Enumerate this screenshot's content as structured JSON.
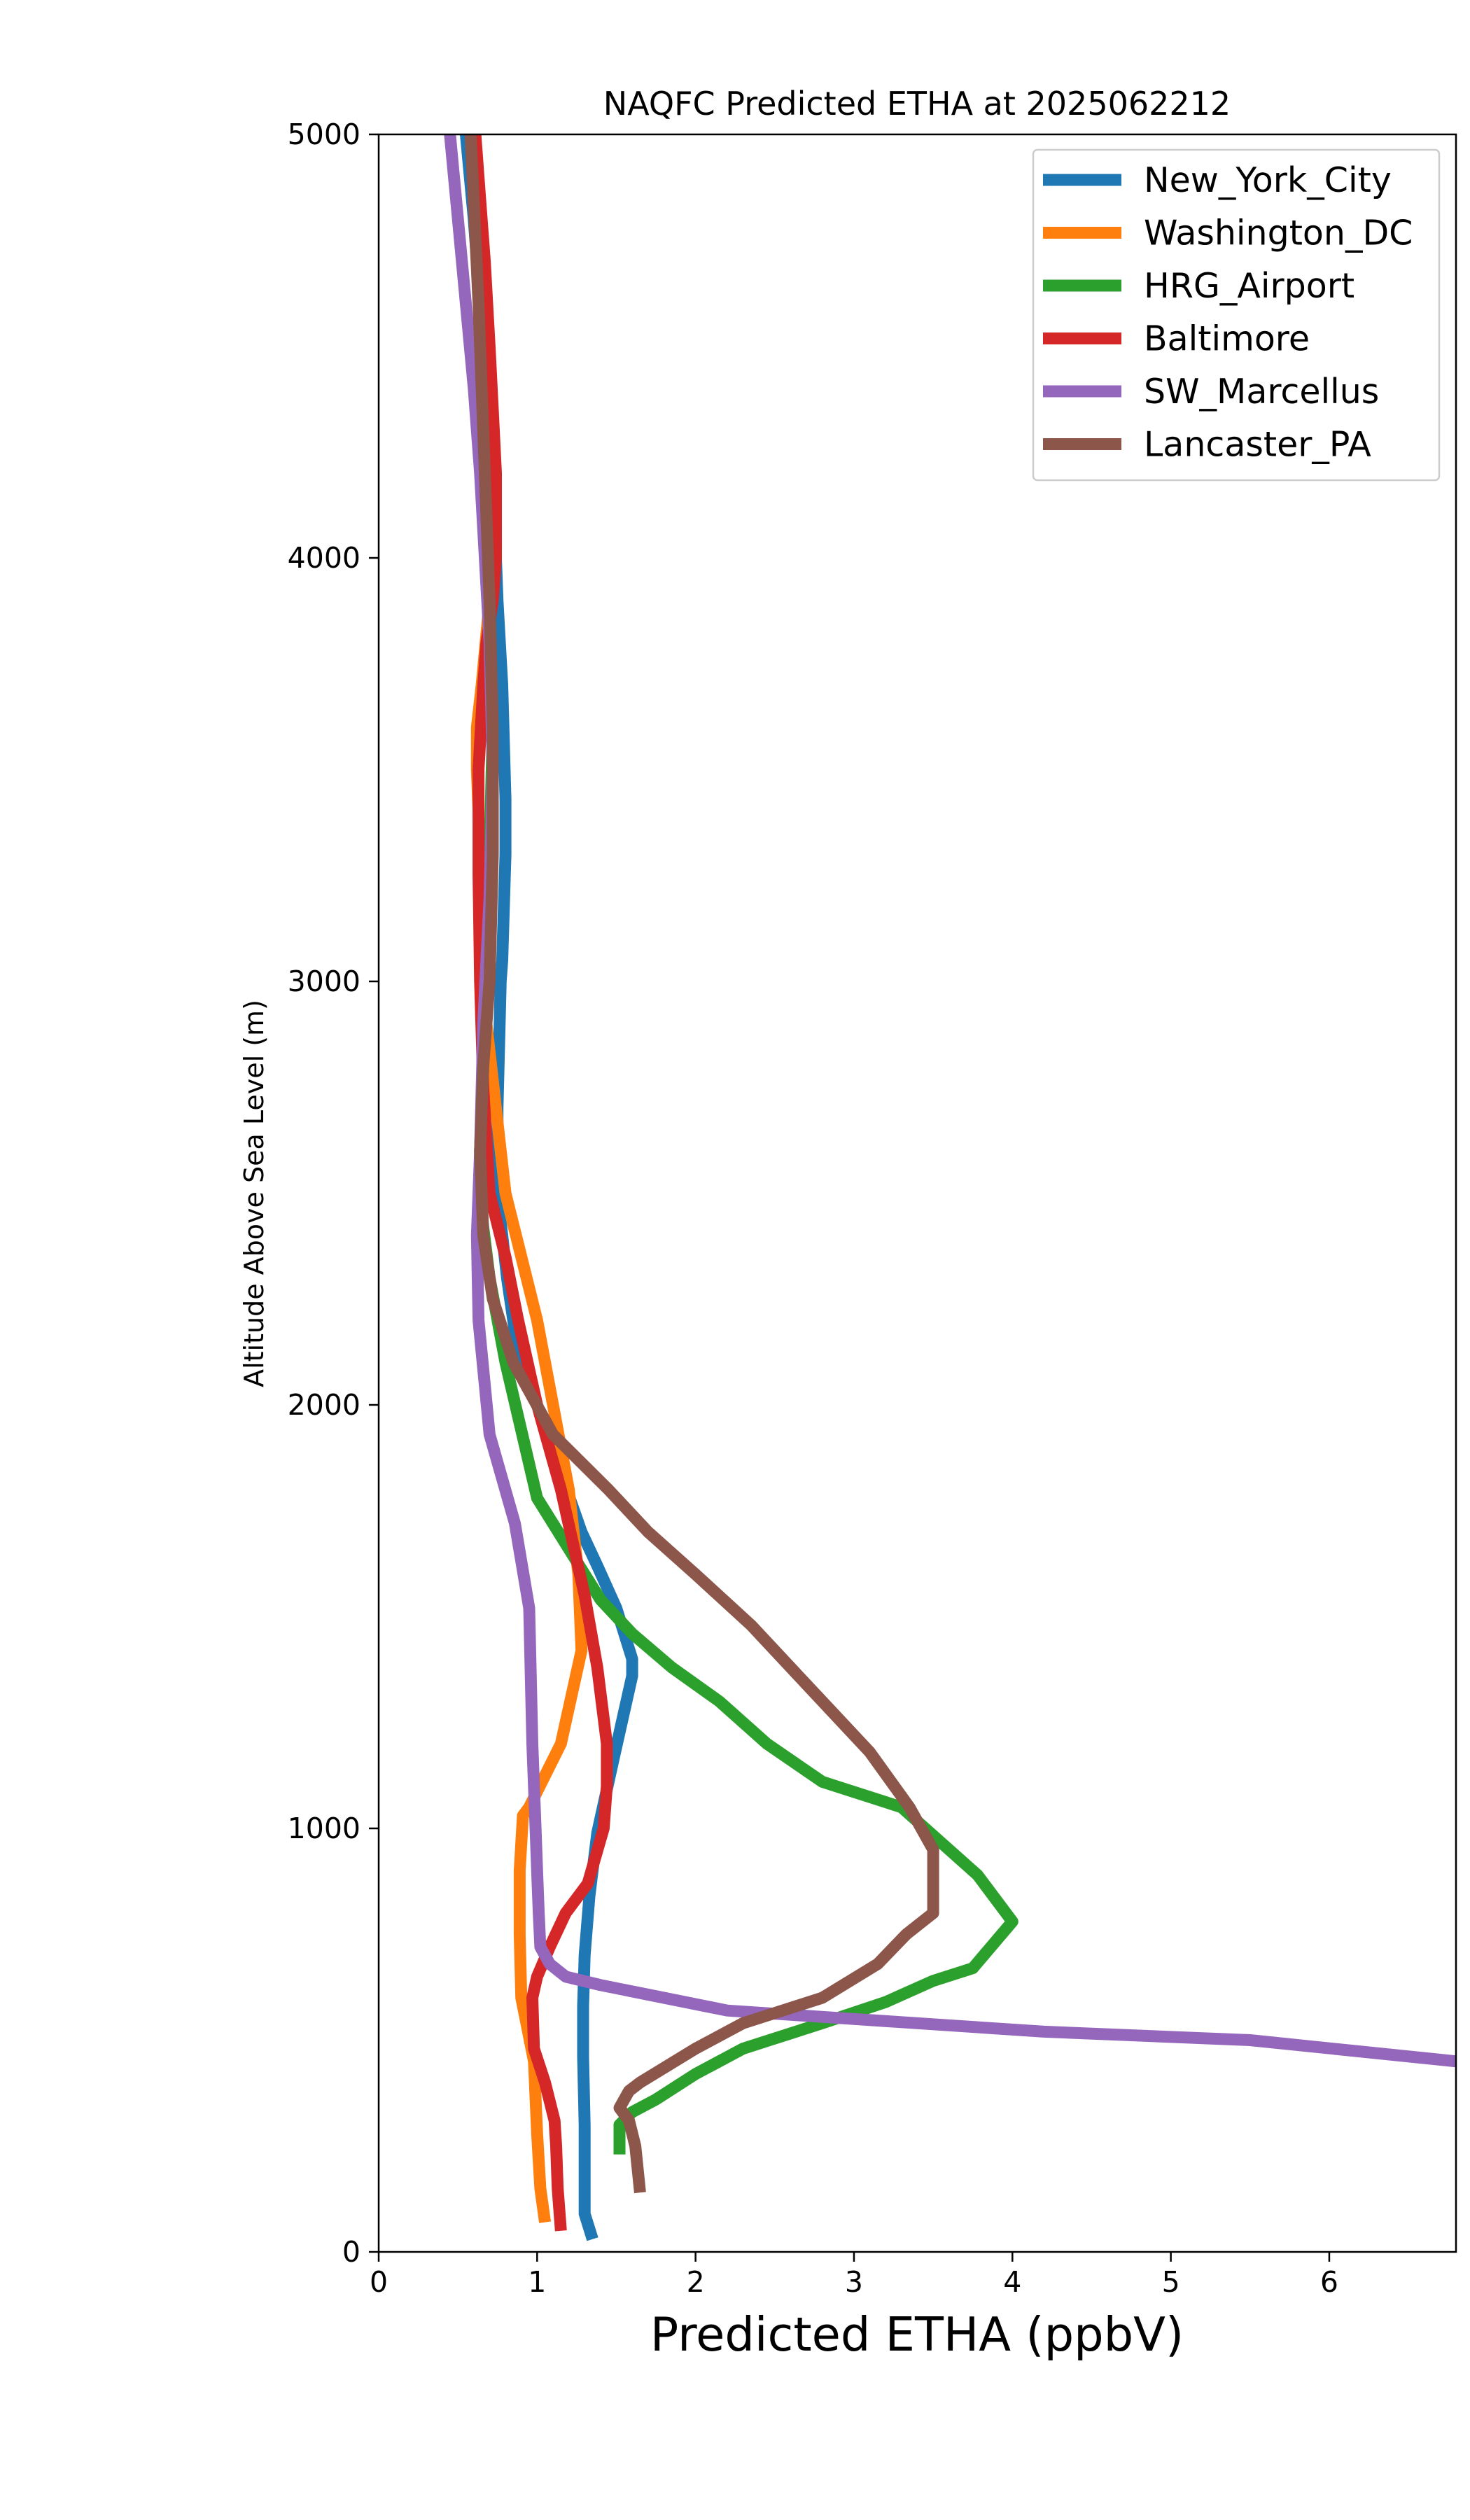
{
  "chart_data": {
    "type": "line",
    "title": "NAQFC Predicted ETHA at 2025062212",
    "xlabel": "Predicted ETHA (ppbV)",
    "ylabel": "Altitude Above Sea Level (m)",
    "xlim": [
      0,
      6.8
    ],
    "ylim": [
      0,
      5000
    ],
    "x_ticks": [
      0,
      1,
      2,
      3,
      4,
      5,
      6
    ],
    "y_ticks": [
      0,
      1000,
      2000,
      3000,
      4000,
      5000
    ],
    "grid": false,
    "legend_position": "top-right",
    "orientation": "values on x-axis, altitude on y-axis",
    "series": [
      {
        "name": "New_York_City",
        "color": "#1f77b4",
        "x": [
          1.35,
          1.3,
          1.3,
          1.29,
          1.29,
          1.3,
          1.33,
          1.38,
          1.48,
          1.6,
          1.6,
          1.5,
          1.38,
          1.28,
          1.0,
          0.88,
          0.81,
          0.75,
          0.75,
          0.77,
          0.78,
          0.8,
          0.8,
          0.78,
          0.75,
          0.73,
          0.7,
          0.66,
          0.6,
          0.55
        ],
        "y": [
          30,
          90,
          300,
          460,
          580,
          700,
          840,
          990,
          1160,
          1360,
          1400,
          1520,
          1620,
          1700,
          2000,
          2120,
          2300,
          2500,
          2700,
          3000,
          3050,
          3300,
          3430,
          3700,
          3900,
          4100,
          4300,
          4500,
          4800,
          5000
        ]
      },
      {
        "name": "Washington_DC",
        "color": "#ff7f0e",
        "x": [
          1.05,
          1.02,
          1.0,
          0.98,
          0.9,
          0.89,
          0.89,
          0.91,
          0.95,
          1.15,
          1.28,
          1.26,
          1.2,
          1.1,
          1.0,
          0.9,
          0.8,
          0.74,
          0.65,
          0.64,
          0.63,
          0.62,
          0.62,
          0.65,
          0.7,
          0.68,
          0.66,
          0.64,
          0.62,
          0.6
        ],
        "y": [
          70,
          150,
          280,
          450,
          600,
          750,
          900,
          1030,
          1050,
          1200,
          1420,
          1600,
          1800,
          2000,
          2200,
          2350,
          2500,
          2700,
          3000,
          3200,
          3400,
          3500,
          3600,
          3700,
          3900,
          4100,
          4300,
          4500,
          4800,
          5000
        ]
      },
      {
        "name": "HRG_Airport",
        "color": "#2ca02c",
        "x": [
          1.52,
          1.52,
          1.6,
          1.75,
          2.0,
          2.3,
          2.8,
          3.2,
          3.5,
          3.75,
          4.0,
          3.78,
          3.3,
          2.8,
          2.45,
          2.15,
          1.85,
          1.6,
          1.4,
          1.2,
          1.0,
          0.8,
          0.7,
          0.65,
          0.64,
          0.66,
          0.68,
          0.7,
          0.72,
          0.7,
          0.68,
          0.66,
          0.64,
          0.62,
          0.6
        ],
        "y": [
          230,
          300,
          330,
          360,
          420,
          480,
          540,
          590,
          640,
          670,
          780,
          890,
          1050,
          1110,
          1200,
          1300,
          1380,
          1460,
          1540,
          1660,
          1780,
          2100,
          2300,
          2450,
          2600,
          2800,
          3000,
          3300,
          3600,
          3800,
          4000,
          4200,
          4500,
          4800,
          5000
        ]
      },
      {
        "name": "Baltimore",
        "color": "#d62728",
        "x": [
          1.15,
          1.13,
          1.12,
          1.11,
          1.05,
          0.98,
          0.97,
          1.0,
          1.08,
          1.18,
          1.32,
          1.42,
          1.44,
          1.44,
          1.38,
          1.3,
          1.15,
          1.0,
          0.88,
          0.8,
          0.7,
          0.66,
          0.64,
          0.63,
          0.63,
          0.66,
          0.68,
          0.72,
          0.74,
          0.74,
          0.72,
          0.7,
          0.67,
          0.64,
          0.61
        ],
        "y": [
          50,
          150,
          250,
          310,
          400,
          480,
          600,
          650,
          720,
          800,
          870,
          1000,
          1100,
          1200,
          1380,
          1550,
          1800,
          2000,
          2200,
          2350,
          2500,
          2750,
          3000,
          3250,
          3500,
          3700,
          3800,
          3900,
          4000,
          4200,
          4350,
          4500,
          4700,
          4850,
          5000
        ]
      },
      {
        "name": "SW_Marcellus",
        "color": "#9467bd",
        "x": [
          6.8,
          5.5,
          4.2,
          3.0,
          2.2,
          1.8,
          1.4,
          1.18,
          1.08,
          1.02,
          1.01,
          1.0,
          0.99,
          0.97,
          0.95,
          0.86,
          0.7,
          0.63,
          0.62,
          0.64,
          0.66,
          0.7,
          0.72,
          0.7,
          0.67,
          0.64,
          0.6,
          0.55,
          0.5,
          0.45
        ],
        "y": [
          450,
          500,
          520,
          550,
          570,
          600,
          630,
          650,
          680,
          720,
          800,
          900,
          1000,
          1200,
          1520,
          1720,
          1930,
          2200,
          2400,
          2600,
          2900,
          3200,
          3500,
          3800,
          4000,
          4200,
          4400,
          4600,
          4800,
          5000
        ]
      },
      {
        "name": "Lancaster_PA",
        "color": "#8c564b",
        "x": [
          1.65,
          1.62,
          1.58,
          1.52,
          1.58,
          1.65,
          2.0,
          2.3,
          2.8,
          3.15,
          3.33,
          3.5,
          3.5,
          3.5,
          3.35,
          3.1,
          2.85,
          2.6,
          2.35,
          2.0,
          1.7,
          1.45,
          1.1,
          0.85,
          0.72,
          0.66,
          0.64,
          0.66,
          0.7,
          0.72,
          0.72,
          0.7,
          0.67,
          0.63,
          0.58
        ],
        "y": [
          140,
          250,
          310,
          340,
          380,
          400,
          480,
          540,
          600,
          680,
          750,
          800,
          900,
          950,
          1050,
          1180,
          1280,
          1380,
          1480,
          1600,
          1700,
          1800,
          1930,
          2100,
          2250,
          2400,
          2600,
          2800,
          3000,
          3300,
          3600,
          3900,
          4200,
          4600,
          5000
        ]
      }
    ]
  }
}
